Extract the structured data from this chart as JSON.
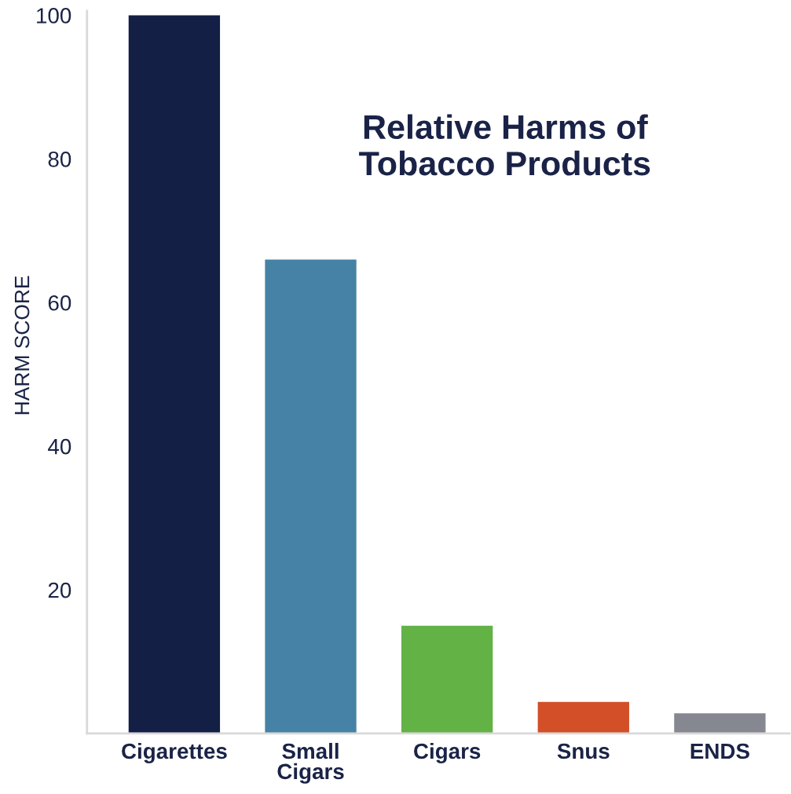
{
  "chart_data": {
    "type": "bar",
    "title": "Relative Harms of Tobacco Products",
    "ylabel": "HARM SCORE",
    "categories": [
      "Cigarettes",
      "Small Cigars",
      "Cigars",
      "Snus",
      "ENDS"
    ],
    "values": [
      100,
      66,
      15,
      4.4,
      2.8
    ],
    "colors": [
      "#141f45",
      "#4682a6",
      "#62b246",
      "#d24f27",
      "#858891"
    ],
    "ylim": [
      0,
      100.6
    ],
    "yticks": [
      20,
      40,
      60,
      80,
      100
    ],
    "grid": false,
    "legend": false
  }
}
